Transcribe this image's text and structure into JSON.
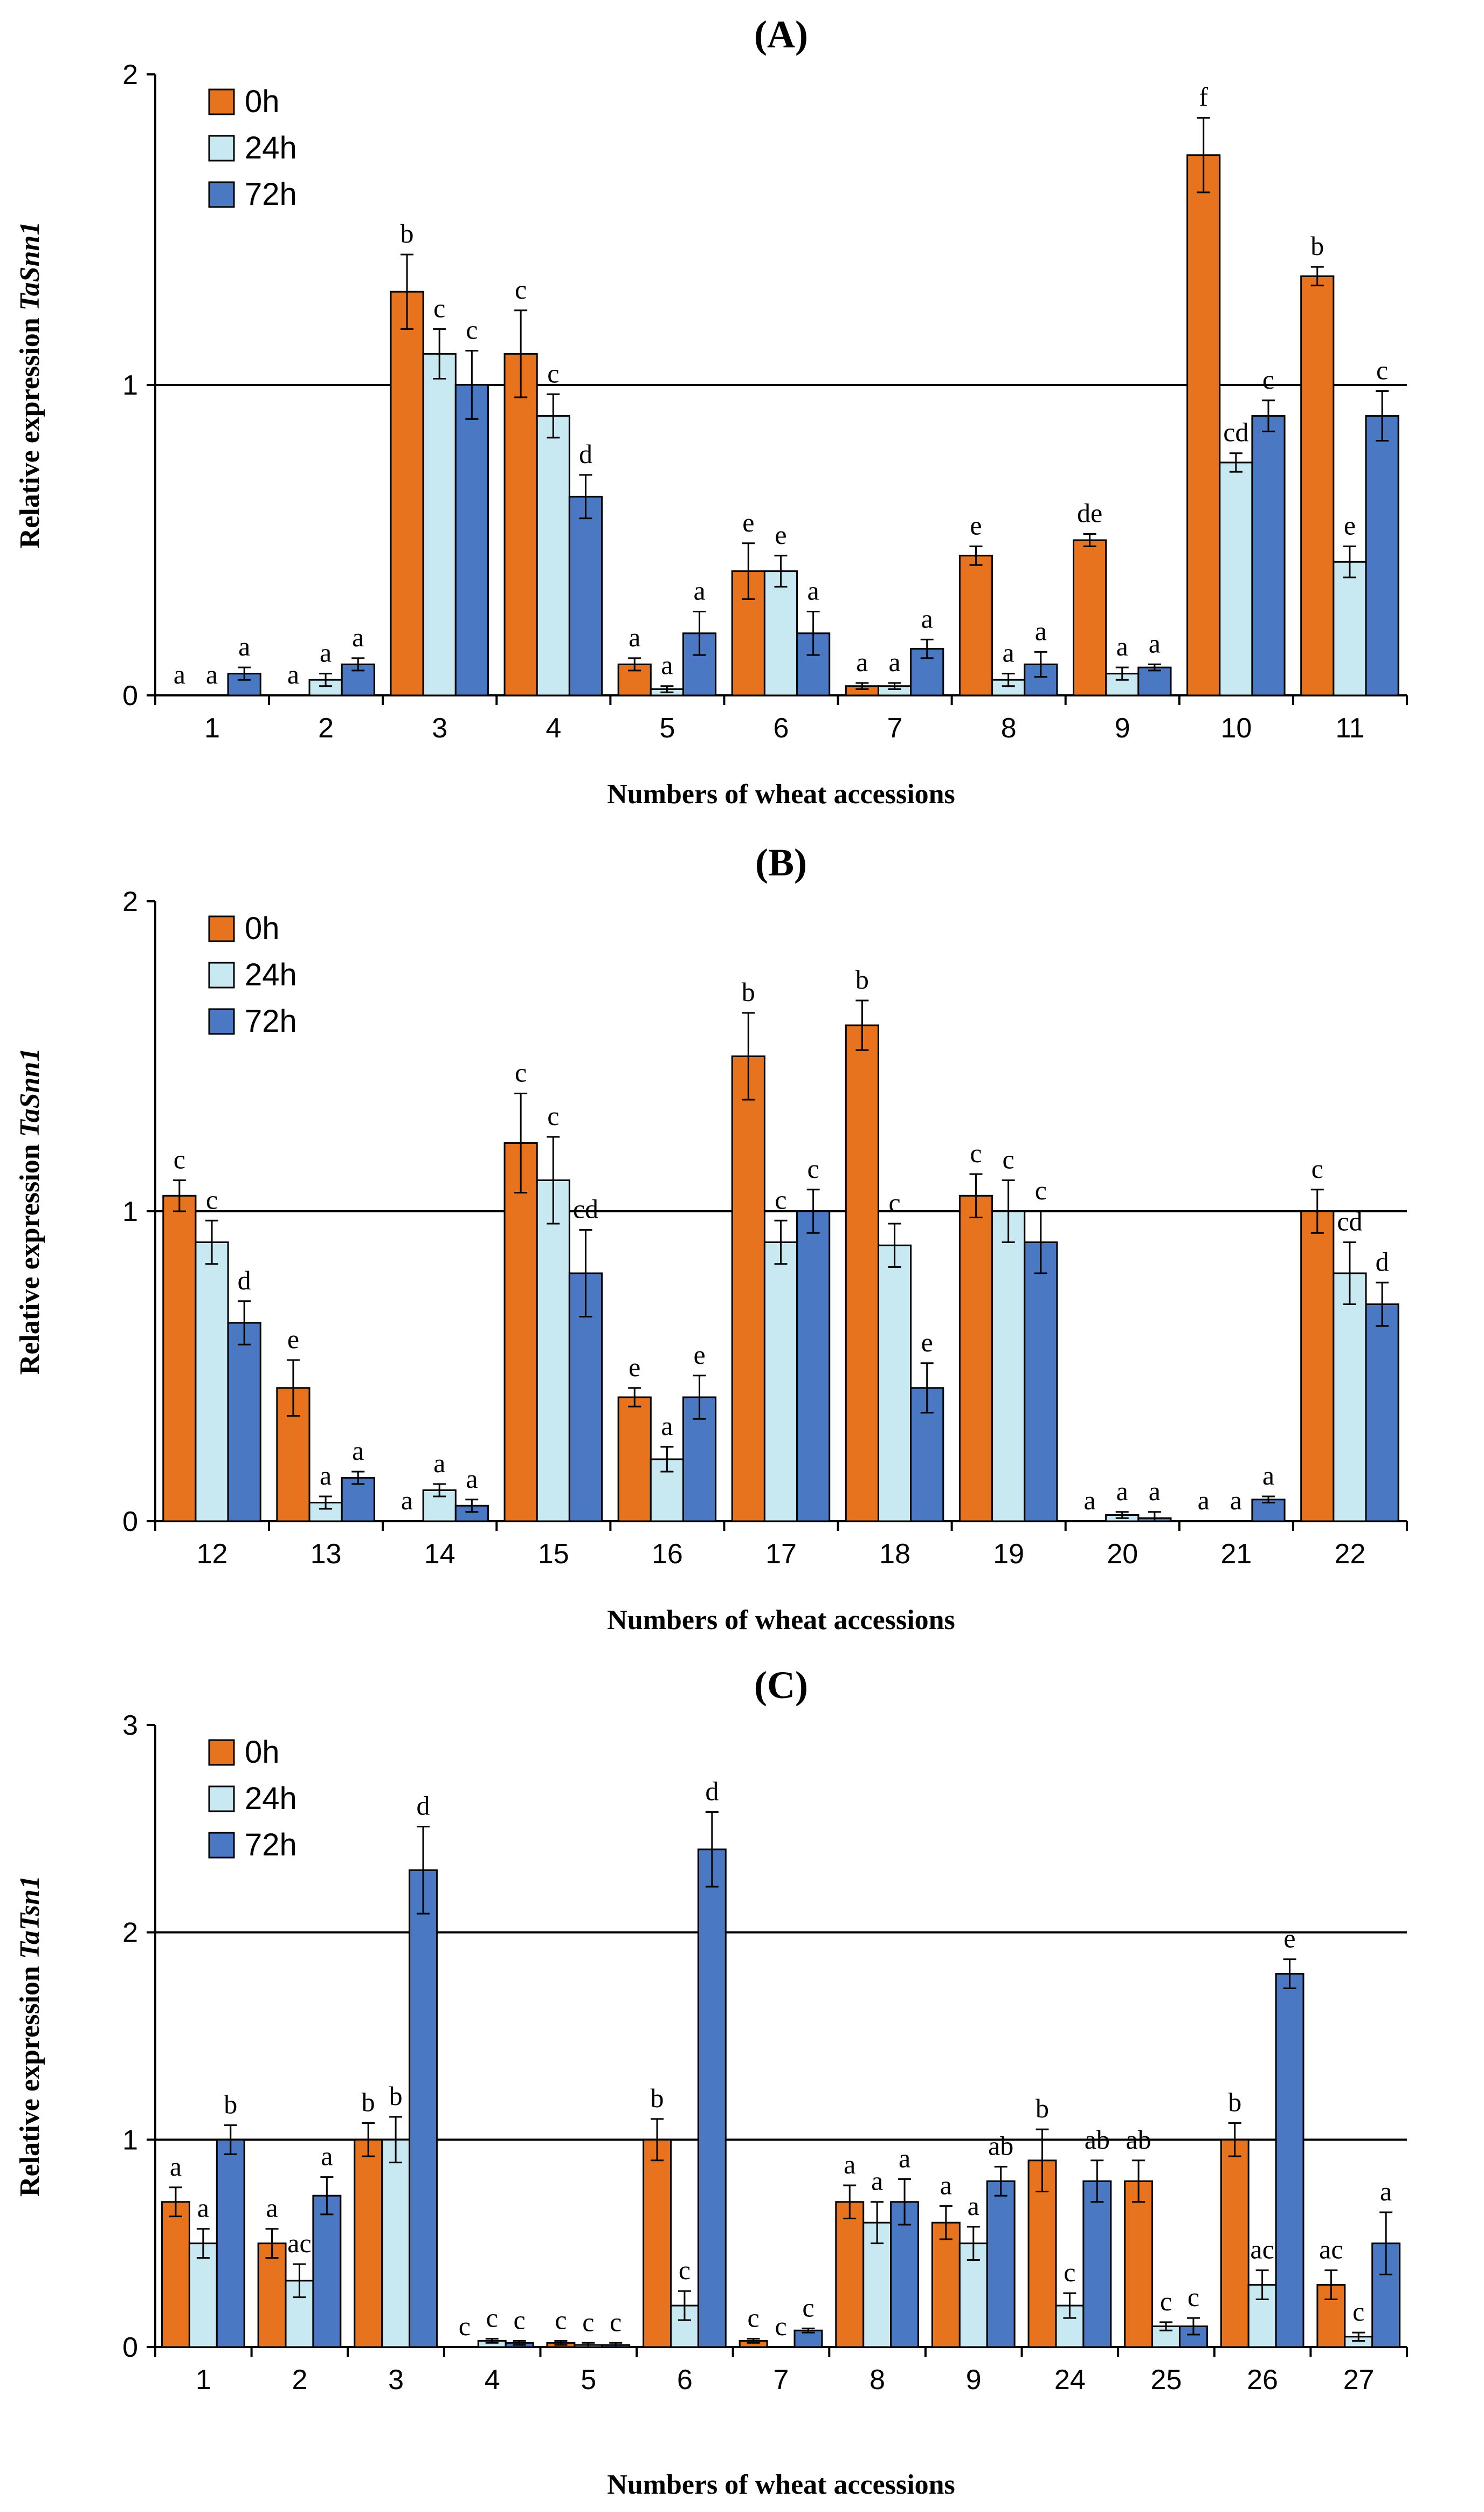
{
  "colors": {
    "series_0h": "#e8731e",
    "series_24h": "#c8e9f1",
    "series_72h": "#4a78c2",
    "edge": "#000000"
  },
  "chart_data": [
    {
      "type": "bar",
      "panel": "(A)",
      "title": "(A)",
      "xlabel": "Numbers of wheat accessions",
      "ylabel_prefix": "Relative expression ",
      "ylabel_gene": "TaSnn1",
      "ylim": [
        0,
        2
      ],
      "yticks": [
        "0",
        "1",
        "2"
      ],
      "reference_lines": [
        1
      ],
      "legend_placement": "top-left",
      "categories": [
        "1",
        "2",
        "3",
        "4",
        "5",
        "6",
        "7",
        "8",
        "9",
        "10",
        "11"
      ],
      "series": [
        {
          "name": "0h",
          "values": [
            0,
            0,
            1.3,
            1.1,
            0.1,
            0.4,
            0.03,
            0.45,
            0.5,
            1.74,
            1.35
          ],
          "errors": [
            0,
            0,
            0.12,
            0.14,
            0.02,
            0.09,
            0.01,
            0.03,
            0.02,
            0.12,
            0.03
          ],
          "labels": [
            "a",
            "a",
            "b",
            "c",
            "a",
            "e",
            "a",
            "e",
            "de",
            "f",
            "b"
          ]
        },
        {
          "name": "24h",
          "values": [
            0,
            0.05,
            1.1,
            0.9,
            0.02,
            0.4,
            0.03,
            0.05,
            0.07,
            0.75,
            0.43
          ],
          "errors": [
            0,
            0.02,
            0.08,
            0.07,
            0.01,
            0.05,
            0.01,
            0.02,
            0.02,
            0.03,
            0.05
          ],
          "labels": [
            "a",
            "a",
            "c",
            "c",
            "a",
            "e",
            "a",
            "a",
            "a",
            "cd",
            "e"
          ]
        },
        {
          "name": "72h",
          "values": [
            0.07,
            0.1,
            1.0,
            0.64,
            0.2,
            0.2,
            0.15,
            0.1,
            0.09,
            0.9,
            0.9
          ],
          "errors": [
            0.02,
            0.02,
            0.11,
            0.07,
            0.07,
            0.07,
            0.03,
            0.04,
            0.01,
            0.05,
            0.08
          ],
          "labels": [
            "a",
            "a",
            "c",
            "d",
            "a",
            "a",
            "a",
            "a",
            "a",
            "c",
            "c"
          ]
        }
      ]
    },
    {
      "type": "bar",
      "panel": "(B)",
      "title": "(B)",
      "xlabel": "Numbers of wheat accessions",
      "ylabel_prefix": "Relative expression ",
      "ylabel_gene": "TaSnn1",
      "ylim": [
        0,
        2
      ],
      "yticks": [
        "0",
        "1",
        "2"
      ],
      "reference_lines": [
        1
      ],
      "legend_placement": "top-left",
      "categories": [
        "12",
        "13",
        "14",
        "15",
        "16",
        "17",
        "18",
        "19",
        "20",
        "21",
        "22"
      ],
      "series": [
        {
          "name": "0h",
          "values": [
            1.05,
            0.43,
            0,
            1.22,
            0.4,
            1.5,
            1.6,
            1.05,
            0,
            0,
            1.0
          ],
          "errors": [
            0.05,
            0.09,
            0,
            0.16,
            0.03,
            0.14,
            0.08,
            0.07,
            0,
            0,
            0.07
          ],
          "labels": [
            "c",
            "e",
            "a",
            "c",
            "e",
            "b",
            "b",
            "c",
            "a",
            "a",
            "c"
          ]
        },
        {
          "name": "24h",
          "values": [
            0.9,
            0.06,
            0.1,
            1.1,
            0.2,
            0.9,
            0.89,
            1.0,
            0.02,
            0,
            0.8
          ],
          "errors": [
            0.07,
            0.02,
            0.02,
            0.14,
            0.04,
            0.07,
            0.07,
            0.1,
            0.01,
            0,
            0.1
          ],
          "labels": [
            "c",
            "a",
            "a",
            "c",
            "a",
            "c",
            "c",
            "c",
            "a",
            "a",
            "cd"
          ]
        },
        {
          "name": "72h",
          "values": [
            0.64,
            0.14,
            0.05,
            0.8,
            0.4,
            1.0,
            0.43,
            0.9,
            0.01,
            0.07,
            0.7
          ],
          "errors": [
            0.07,
            0.02,
            0.02,
            0.14,
            0.07,
            0.07,
            0.08,
            0.1,
            0.02,
            0.01,
            0.07
          ],
          "labels": [
            "d",
            "a",
            "a",
            "cd",
            "e",
            "c",
            "e",
            "c",
            "a",
            "a",
            "d"
          ]
        }
      ]
    },
    {
      "type": "bar",
      "panel": "(C)",
      "title": "(C)",
      "xlabel": "Numbers of wheat accessions",
      "ylabel_prefix": "Relative expression ",
      "ylabel_gene": "TaTsn1",
      "ylim": [
        0,
        3
      ],
      "yticks": [
        "0",
        "1",
        "2",
        "3"
      ],
      "reference_lines": [
        1,
        2
      ],
      "legend_placement": "top-left",
      "categories": [
        "1",
        "2",
        "3",
        "4",
        "5",
        "6",
        "7",
        "8",
        "9",
        "24",
        "25",
        "26",
        "27"
      ],
      "series": [
        {
          "name": "0h",
          "values": [
            0.7,
            0.5,
            1.0,
            0,
            0.02,
            1.0,
            0.03,
            0.7,
            0.6,
            0.9,
            0.8,
            1.0,
            0.3
          ],
          "errors": [
            0.07,
            0.07,
            0.08,
            0,
            0.01,
            0.1,
            0.01,
            0.08,
            0.08,
            0.15,
            0.1,
            0.08,
            0.07
          ],
          "labels": [
            "a",
            "a",
            "b",
            "c",
            "c",
            "b",
            "c",
            "a",
            "a",
            "b",
            "ab",
            "b",
            "ac"
          ]
        },
        {
          "name": "24h",
          "values": [
            0.5,
            0.32,
            1.0,
            0.03,
            0.01,
            0.2,
            0,
            0.6,
            0.5,
            0.2,
            0.1,
            0.3,
            0.05
          ],
          "errors": [
            0.07,
            0.08,
            0.11,
            0.01,
            0.01,
            0.07,
            0,
            0.1,
            0.08,
            0.06,
            0.02,
            0.07,
            0.02
          ],
          "labels": [
            "a",
            "ac",
            "b",
            "c",
            "c",
            "c",
            "c",
            "a",
            "a",
            "c",
            "c",
            "ac",
            "c"
          ]
        },
        {
          "name": "72h",
          "values": [
            1.0,
            0.73,
            2.3,
            0.02,
            0.01,
            2.4,
            0.08,
            0.7,
            0.8,
            0.8,
            0.1,
            1.8,
            0.5
          ],
          "errors": [
            0.07,
            0.09,
            0.21,
            0.01,
            0.01,
            0.18,
            0.01,
            0.11,
            0.07,
            0.1,
            0.04,
            0.07,
            0.15
          ],
          "labels": [
            "b",
            "a",
            "d",
            "c",
            "c",
            "d",
            "c",
            "a",
            "ab",
            "ab",
            "c",
            "e",
            "a"
          ]
        }
      ]
    }
  ]
}
